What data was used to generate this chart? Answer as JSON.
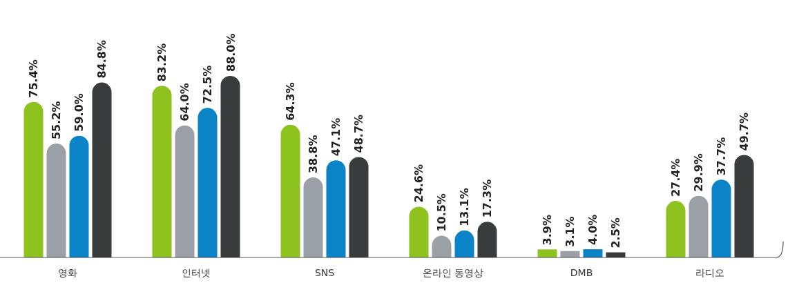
{
  "chart_data": {
    "type": "bar",
    "categories": [
      "영화",
      "인터넷",
      "SNS",
      "온라인 동영상",
      "DMB",
      "라디오"
    ],
    "series": [
      {
        "color": "#8dc21f",
        "values": [
          75.4,
          83.2,
          64.3,
          24.6,
          3.9,
          27.4
        ],
        "value_labels": [
          "75.4%",
          "83.2%",
          "64.3%",
          "24.6%",
          "3.9%",
          "27.4%"
        ]
      },
      {
        "color": "#9aa0a6",
        "values": [
          55.2,
          64.0,
          38.8,
          10.5,
          3.1,
          29.9
        ],
        "value_labels": [
          "55.2%",
          "64.0%",
          "38.8%",
          "10.5%",
          "3.1%",
          "29.9%"
        ]
      },
      {
        "color": "#0a84c6",
        "values": [
          59.0,
          72.5,
          47.1,
          13.1,
          4.0,
          37.7
        ],
        "value_labels": [
          "59.0%",
          "72.5%",
          "47.1%",
          "13.1%",
          "4.0%",
          "37.7%"
        ]
      },
      {
        "color": "#3a3b3d",
        "values": [
          84.8,
          88.0,
          48.7,
          17.3,
          2.5,
          49.7
        ],
        "value_labels": [
          "84.8%",
          "88.0%",
          "48.7%",
          "17.3%",
          "2.5%",
          "49.7%"
        ]
      }
    ],
    "relative": false
  }
}
